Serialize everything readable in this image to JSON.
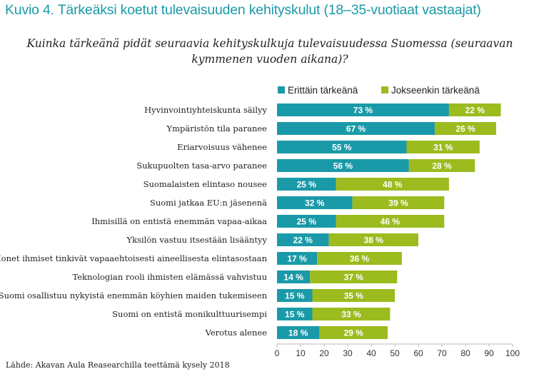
{
  "chart_data": {
    "type": "bar",
    "orientation": "horizontal",
    "stacked": true,
    "title": "Kuvio 4. Tärkeäksi koetut tulevaisuuden kehityskulut (18–35-vuotiaat vastaajat)",
    "subtitle": "Kuinka tärkeänä pidät seuraavia kehityskulkuja tulevaisuudessa Suomessa (seuraavan kymmenen vuoden aikana)?",
    "source": "Lähde: Akavan Aula Reasearchilla teettämä kysely 2018",
    "categories": [
      "Hyvinvointiyhteiskunta säilyy",
      "Ympäristön tila paranee",
      "Eriarvoisuus vähenee",
      "Sukupuolten tasa-arvo paranee",
      "Suomalaisten elintaso nousee",
      "Suomi jatkaa EU:n jäsenenä",
      "Ihmisillä on entistä enemmän vapaa-aikaa",
      "Yksilön vastuu itsestään lisääntyy",
      "Monet ihmiset tinkivät vapaaehtoisesti aineellisesta elintasostaan",
      "Teknologian rooli ihmisten elämässä vahvistuu",
      "Suomi osallistuu nykyistä enemmän köyhien maiden tukemiseen",
      "Suomi on entistä monikulttuurisempi",
      "Verotus alenee"
    ],
    "series": [
      {
        "name": "Erittäin tärkeänä",
        "color": "#1a9aa8",
        "values": [
          73,
          67,
          55,
          56,
          25,
          32,
          25,
          22,
          17,
          14,
          15,
          15,
          18
        ]
      },
      {
        "name": "Jokseenkin tärkeänä",
        "color": "#9cbb1e",
        "values": [
          22,
          26,
          31,
          28,
          48,
          39,
          46,
          38,
          36,
          37,
          35,
          33,
          29
        ]
      }
    ],
    "value_suffix": " %",
    "xlim": [
      0,
      100
    ],
    "xticks": [
      0,
      10,
      20,
      30,
      40,
      50,
      60,
      70,
      80,
      90,
      100
    ],
    "grid": false,
    "legend_position": "top-right"
  }
}
